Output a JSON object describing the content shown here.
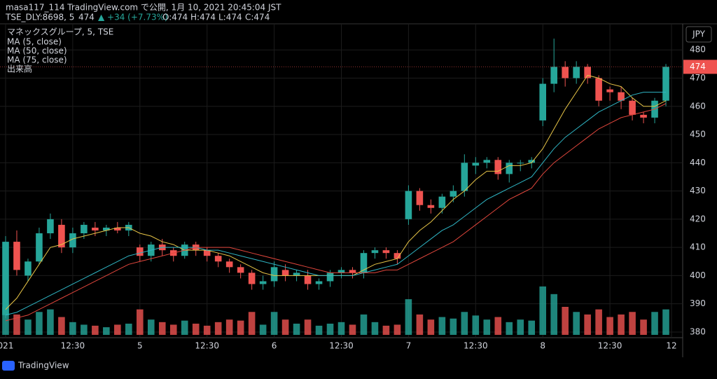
{
  "header": {
    "publisher": "masa117_114 TradingView.com で公開, 1月 10, 2021 20:45:04 JST",
    "symbol": "TSE_DLY:8698, 5",
    "price": "474",
    "change": "▲ +34 (+7.73%)",
    "ohlc": [
      "O:474",
      "H:474",
      "L:474",
      "C:474"
    ]
  },
  "legend": [
    "マネックスグループ, 5, TSE",
    "MA (5, close)",
    "MA (50, close)",
    "MA (75, close)",
    "出来高"
  ],
  "currency": "JPY",
  "footer": "TradingView",
  "chart_data": {
    "type": "candlestick",
    "up_color": "#26a69a",
    "down_color": "#ef5350",
    "x": [
      0,
      1,
      2,
      3,
      4,
      5,
      6,
      7,
      8,
      9,
      10,
      11,
      12,
      13,
      14,
      15,
      16,
      17,
      18,
      19,
      20,
      21,
      22,
      23,
      24,
      25,
      26,
      27,
      28,
      29,
      30,
      31,
      32,
      33,
      34,
      35,
      36,
      37,
      38,
      39,
      40,
      41,
      42,
      43,
      44,
      45,
      46,
      47,
      48,
      49,
      50,
      51,
      52,
      53,
      54,
      55,
      56,
      57,
      58,
      59
    ],
    "xlim": [
      -0.5,
      60.5
    ],
    "xticks": [
      {
        "value": 0,
        "label": "021"
      },
      {
        "value": 6,
        "label": "12:30"
      },
      {
        "value": 12,
        "label": "5"
      },
      {
        "value": 18,
        "label": "12:30"
      },
      {
        "value": 24,
        "label": "6"
      },
      {
        "value": 30,
        "label": "12:30"
      },
      {
        "value": 36,
        "label": "7"
      },
      {
        "value": 42,
        "label": "12:30"
      },
      {
        "value": 48,
        "label": "8"
      },
      {
        "value": 54,
        "label": "12:30"
      },
      {
        "value": 59.5,
        "label": "12"
      }
    ],
    "ylim": [
      378,
      489
    ],
    "yticks": [
      380,
      390,
      400,
      410,
      420,
      430,
      440,
      450,
      460,
      470,
      480
    ],
    "last_price": 474,
    "grid": true,
    "open": [
      386,
      412,
      400,
      405,
      415,
      418,
      410,
      415,
      417,
      416,
      417,
      416,
      410,
      407,
      411,
      409,
      407,
      411,
      409,
      407,
      405,
      403,
      401,
      397,
      398,
      402,
      400,
      400,
      397,
      398,
      401,
      402,
      401,
      408,
      409,
      408,
      420,
      430,
      425,
      424,
      428,
      430,
      439,
      440,
      441,
      436,
      440,
      440,
      455,
      468,
      474,
      470,
      474,
      470,
      466,
      465,
      462,
      457,
      456,
      462
    ],
    "high": [
      414,
      416,
      406,
      417,
      422,
      420,
      417,
      419,
      419,
      418,
      419,
      419,
      411,
      412,
      413,
      410,
      412,
      412,
      410,
      408,
      406,
      404,
      402,
      400,
      405,
      404,
      402,
      402,
      399,
      402,
      403,
      403,
      409,
      410,
      410,
      409,
      432,
      431,
      427,
      429,
      432,
      443,
      442,
      442,
      442,
      441,
      441,
      442,
      470,
      484,
      476,
      476,
      475,
      471,
      467,
      467,
      463,
      458,
      463,
      475
    ],
    "low": [
      385,
      400,
      398,
      404,
      413,
      408,
      408,
      413,
      414,
      414,
      415,
      414,
      405,
      405,
      407,
      405,
      406,
      407,
      405,
      403,
      401,
      399,
      395,
      395,
      396,
      398,
      398,
      395,
      395,
      396,
      399,
      399,
      399,
      406,
      406,
      404,
      418,
      423,
      422,
      422,
      426,
      428,
      436,
      438,
      434,
      433,
      437,
      438,
      453,
      465,
      467,
      468,
      468,
      460,
      462,
      459,
      455,
      454,
      454,
      460
    ],
    "close": [
      412,
      402,
      405,
      415,
      420,
      410,
      415,
      418,
      416,
      417,
      416,
      418,
      407,
      411,
      409,
      407,
      411,
      409,
      407,
      405,
      403,
      401,
      397,
      398,
      403,
      400,
      401,
      397,
      398,
      401,
      402,
      401,
      408,
      409,
      408,
      406,
      430,
      425,
      424,
      428,
      430,
      440,
      440,
      441,
      436,
      440,
      440,
      441,
      468,
      474,
      470,
      474,
      470,
      462,
      465,
      462,
      457,
      456,
      462,
      474
    ],
    "volume": [
      55,
      40,
      30,
      45,
      50,
      35,
      25,
      20,
      18,
      15,
      20,
      22,
      50,
      30,
      25,
      20,
      28,
      22,
      18,
      25,
      30,
      28,
      45,
      20,
      45,
      30,
      22,
      30,
      18,
      22,
      25,
      20,
      40,
      25,
      18,
      20,
      70,
      40,
      30,
      35,
      32,
      45,
      38,
      30,
      35,
      25,
      30,
      28,
      95,
      80,
      55,
      45,
      40,
      50,
      35,
      40,
      45,
      30,
      45,
      50
    ],
    "volume_lim": [
      0,
      110
    ],
    "series": [
      {
        "name": "MA (5, close)",
        "color": "#e8c547",
        "values": [
          388,
          392,
          398,
          404,
          410,
          411,
          413,
          414,
          415,
          416,
          417,
          417,
          415,
          414,
          412,
          411,
          409,
          409,
          409,
          408,
          407,
          405,
          403,
          401,
          400,
          400,
          400,
          400,
          400,
          400,
          400,
          400,
          402,
          404,
          405,
          406,
          412,
          416,
          419,
          423,
          427,
          430,
          434,
          437,
          437,
          439,
          439,
          440,
          445,
          452,
          459,
          465,
          471,
          470,
          468,
          467,
          463,
          460,
          460,
          462
        ]
      },
      {
        "name": "MA (50, close)",
        "color": "#2fb5c4",
        "values": [
          386,
          387,
          389,
          391,
          393,
          395,
          397,
          399,
          401,
          403,
          405,
          407,
          408,
          409,
          410,
          410,
          410,
          410,
          409,
          409,
          408,
          407,
          406,
          405,
          404,
          403,
          402,
          401,
          400,
          400,
          400,
          400,
          401,
          402,
          403,
          404,
          407,
          410,
          413,
          416,
          418,
          421,
          424,
          427,
          429,
          431,
          433,
          435,
          440,
          445,
          449,
          452,
          455,
          458,
          460,
          462,
          464,
          465,
          465,
          465
        ]
      },
      {
        "name": "MA (75, close)",
        "color": "#e0463c",
        "values": [
          384,
          385,
          386,
          388,
          390,
          392,
          394,
          396,
          398,
          400,
          402,
          404,
          405,
          406,
          407,
          408,
          409,
          410,
          410,
          410,
          410,
          409,
          408,
          407,
          406,
          405,
          404,
          403,
          402,
          401,
          401,
          401,
          401,
          401,
          402,
          402,
          404,
          406,
          408,
          410,
          412,
          415,
          418,
          421,
          424,
          427,
          429,
          431,
          436,
          440,
          443,
          446,
          449,
          452,
          454,
          456,
          457,
          458,
          459,
          461
        ]
      }
    ]
  }
}
